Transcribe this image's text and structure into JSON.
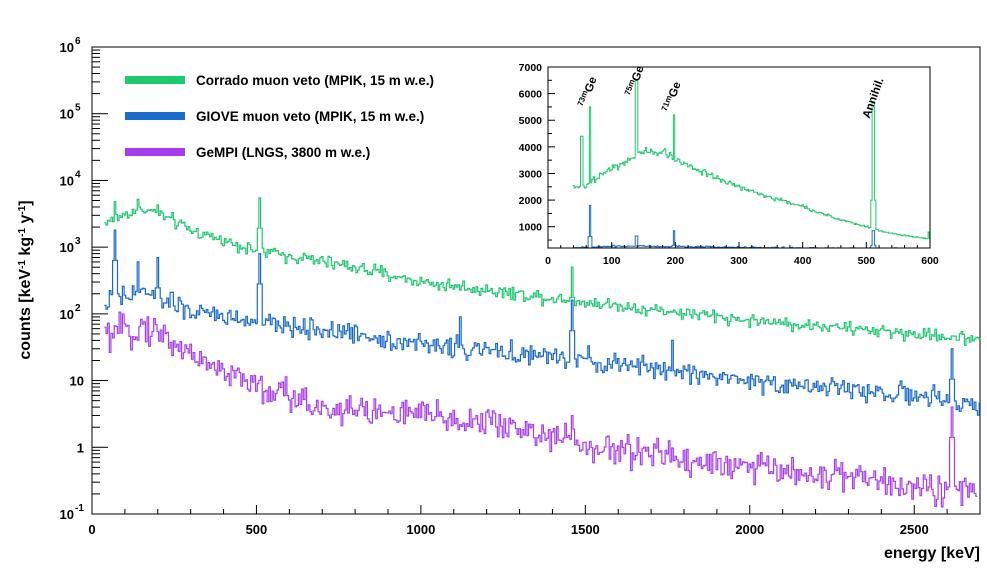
{
  "chart_data": [
    {
      "type": "line",
      "step": true,
      "xlabel": "energy [keV]",
      "ylabel": "counts [keV-1 kg-1 y-1]",
      "ylabel_parts": {
        "main": "counts [keV",
        "exp1": "-1",
        "mid": " kg",
        "exp2": "-1",
        "mid2": " y",
        "exp3": "-1",
        "tail": "]"
      },
      "xlim": [
        0,
        2700
      ],
      "ylim": [
        0.1,
        1000000
      ],
      "yscale": "log",
      "xticks": [
        0,
        500,
        1000,
        1500,
        2000,
        2500
      ],
      "xtick_labels": [
        "0",
        "500",
        "1000",
        "1500",
        "2000",
        "2500"
      ],
      "yticks": [
        {
          "value": 0.1,
          "base": "10",
          "exp": "-1"
        },
        {
          "value": 1,
          "base": "1",
          "exp": ""
        },
        {
          "value": 10,
          "base": "10",
          "exp": ""
        },
        {
          "value": 100,
          "base": "10",
          "exp": "2"
        },
        {
          "value": 1000,
          "base": "10",
          "exp": "3"
        },
        {
          "value": 10000,
          "base": "10",
          "exp": "4"
        },
        {
          "value": 100000,
          "base": "10",
          "exp": "5"
        },
        {
          "value": 1000000,
          "base": "10",
          "exp": "6"
        }
      ],
      "legend": {
        "position": "top-left"
      },
      "series": [
        {
          "name": "Corrado muon veto (MPIK, 15 m w.e.)",
          "color": "#1ec86e",
          "x_range": [
            40,
            2700
          ],
          "trend": [
            [
              40,
              2300
            ],
            [
              80,
              2800
            ],
            [
              150,
              3800
            ],
            [
              200,
              3200
            ],
            [
              300,
              1800
            ],
            [
              500,
              900
            ],
            [
              800,
              500
            ],
            [
              1000,
              300
            ],
            [
              1500,
              150
            ],
            [
              2000,
              80
            ],
            [
              2500,
              50
            ],
            [
              2700,
              42
            ]
          ],
          "noise": 0.22,
          "peaks": [
            [
              68,
              4800
            ],
            [
              140,
              5200
            ],
            [
              198,
              4300
            ],
            [
              511,
              5500
            ],
            [
              1460,
              500
            ]
          ]
        },
        {
          "name": "GIOVE muon veto (MPIK, 15 m w.e.)",
          "color": "#1a6acc",
          "x_range": [
            40,
            2700
          ],
          "trend": [
            [
              40,
              140
            ],
            [
              80,
              160
            ],
            [
              150,
              220
            ],
            [
              200,
              180
            ],
            [
              300,
              110
            ],
            [
              500,
              75
            ],
            [
              800,
              50
            ],
            [
              1000,
              35
            ],
            [
              1500,
              20
            ],
            [
              2000,
              10
            ],
            [
              2500,
              6
            ],
            [
              2700,
              4
            ]
          ],
          "noise": 0.35,
          "peaks": [
            [
              68,
              1800
            ],
            [
              140,
              600
            ],
            [
              198,
              700
            ],
            [
              511,
              800
            ],
            [
              1120,
              90
            ],
            [
              1460,
              160
            ],
            [
              1765,
              40
            ],
            [
              2615,
              30
            ]
          ]
        },
        {
          "name": "GeMPI (LNGS, 3800 m w.e.)",
          "color": "#a83cf0",
          "x_range": [
            40,
            2690
          ],
          "trend": [
            [
              40,
              45
            ],
            [
              80,
              50
            ],
            [
              150,
              65
            ],
            [
              200,
              55
            ],
            [
              300,
              25
            ],
            [
              500,
              8
            ],
            [
              700,
              4
            ],
            [
              1000,
              3
            ],
            [
              1300,
              2
            ],
            [
              1500,
              1
            ],
            [
              1700,
              0.8
            ],
            [
              2000,
              0.5
            ],
            [
              2300,
              0.35
            ],
            [
              2600,
              0.25
            ],
            [
              2690,
              0.2
            ]
          ],
          "noise": 0.55,
          "peaks": [
            [
              1460,
              3
            ],
            [
              2615,
              4
            ]
          ]
        }
      ]
    },
    {
      "type": "line",
      "step": true,
      "inset": true,
      "xlim": [
        0,
        600
      ],
      "ylim": [
        200,
        7000
      ],
      "xticks": [
        0,
        100,
        200,
        300,
        400,
        500,
        600
      ],
      "xtick_labels": [
        "0",
        "100",
        "200",
        "300",
        "400",
        "500",
        "600"
      ],
      "yticks": [
        1000,
        2000,
        3000,
        4000,
        5000,
        6000,
        7000
      ],
      "ytick_labels": [
        "1000",
        "2000",
        "3000",
        "4000",
        "5000",
        "6000",
        "7000"
      ],
      "annotations": [
        {
          "sup": "73m",
          "text": "Ge",
          "x": 66
        },
        {
          "sup": "75m",
          "text": "Ge",
          "x": 140
        },
        {
          "sup": "71m",
          "text": "Ge",
          "x": 198
        },
        {
          "sup": "",
          "text": "Annihil.",
          "x": 511
        }
      ],
      "series": [
        {
          "color": "#1ec86e",
          "x_range": [
            40,
            600
          ],
          "trend": [
            [
              40,
              2500
            ],
            [
              55,
              2450
            ],
            [
              80,
              2900
            ],
            [
              110,
              3300
            ],
            [
              150,
              3850
            ],
            [
              180,
              3800
            ],
            [
              220,
              3300
            ],
            [
              260,
              2900
            ],
            [
              300,
              2500
            ],
            [
              350,
              2100
            ],
            [
              400,
              1750
            ],
            [
              450,
              1350
            ],
            [
              500,
              1000
            ],
            [
              550,
              700
            ],
            [
              600,
              550
            ]
          ],
          "noise": 0.04,
          "peaks": [
            [
              53,
              4400
            ],
            [
              66,
              5500
            ],
            [
              139,
              6500
            ],
            [
              198,
              5200
            ],
            [
              511,
              5700
            ],
            [
              598,
              800
            ]
          ]
        },
        {
          "color": "#1a6acc",
          "x_range": [
            40,
            600
          ],
          "trend": [
            [
              40,
              200
            ],
            [
              60,
              230
            ],
            [
              100,
              260
            ],
            [
              150,
              270
            ],
            [
              200,
              250
            ],
            [
              300,
              230
            ],
            [
              400,
              200
            ],
            [
              500,
              190
            ],
            [
              600,
              170
            ]
          ],
          "noise": 0.12,
          "peaks": [
            [
              66,
              1800
            ],
            [
              139,
              650
            ],
            [
              198,
              850
            ],
            [
              511,
              850
            ]
          ]
        }
      ]
    }
  ]
}
